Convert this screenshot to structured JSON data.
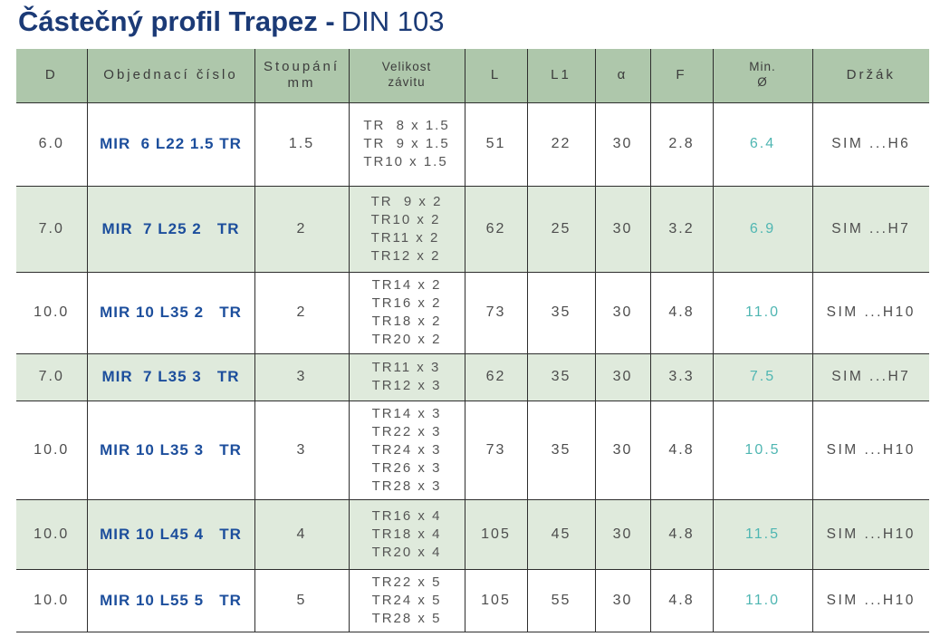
{
  "title": {
    "main": "Částečný profil Trapez -",
    "suffix": "DIN 103"
  },
  "colors": {
    "title_navy": "#1b3a76",
    "order_code_blue": "#1c4e9c",
    "header_green": "#aec7ab",
    "shaded_row_green": "#dfeadc",
    "min_diameter_teal": "#4fb6b2",
    "grid_line": "#2e2e2e"
  },
  "table": {
    "columns": [
      "D",
      "Objednací číslo",
      "Stoupání\nmm",
      "Velikost\nzávitu",
      "L",
      "L1",
      "α",
      "F",
      "Min.\nØ",
      "Držák"
    ],
    "rows": [
      {
        "d": "6.0",
        "code": "MIR  6 L22 1.5 TR",
        "pitch": "1.5",
        "threads": [
          "TR  8 x 1.5",
          "TR  9 x 1.5",
          "TR10 x 1.5"
        ],
        "l": "51",
        "l1": "22",
        "alpha": "30",
        "f": "2.8",
        "min_d": "6.4",
        "holder": "SIM ...H6"
      },
      {
        "d": "7.0",
        "code": "MIR  7 L25 2   TR",
        "pitch": "2",
        "threads": [
          "TR  9 x 2",
          "TR10 x 2",
          "TR11 x 2",
          "TR12 x 2"
        ],
        "l": "62",
        "l1": "25",
        "alpha": "30",
        "f": "3.2",
        "min_d": "6.9",
        "holder": "SIM ...H7"
      },
      {
        "d": "10.0",
        "code": "MIR 10 L35 2   TR",
        "pitch": "2",
        "threads": [
          "TR14 x 2",
          "TR16 x 2",
          "TR18 x 2",
          "TR20 x 2"
        ],
        "l": "73",
        "l1": "35",
        "alpha": "30",
        "f": "4.8",
        "min_d": "11.0",
        "holder": "SIM ...H10"
      },
      {
        "d": "7.0",
        "code": "MIR  7 L35 3   TR",
        "pitch": "3",
        "threads": [
          "TR11 x 3",
          "TR12 x 3"
        ],
        "l": "62",
        "l1": "35",
        "alpha": "30",
        "f": "3.3",
        "min_d": "7.5",
        "holder": "SIM ...H7"
      },
      {
        "d": "10.0",
        "code": "MIR 10 L35 3   TR",
        "pitch": "3",
        "threads": [
          "TR14 x 3",
          "TR22 x 3",
          "TR24 x 3",
          "TR26 x 3",
          "TR28 x 3"
        ],
        "l": "73",
        "l1": "35",
        "alpha": "30",
        "f": "4.8",
        "min_d": "10.5",
        "holder": "SIM ...H10"
      },
      {
        "d": "10.0",
        "code": "MIR 10 L45 4   TR",
        "pitch": "4",
        "threads": [
          "TR16 x 4",
          "TR18 x 4",
          "TR20 x 4"
        ],
        "l": "105",
        "l1": "45",
        "alpha": "30",
        "f": "4.8",
        "min_d": "11.5",
        "holder": "SIM ...H10"
      },
      {
        "d": "10.0",
        "code": "MIR 10 L55 5   TR",
        "pitch": "5",
        "threads": [
          "TR22 x 5",
          "TR24 x 5",
          "TR28 x 5"
        ],
        "l": "105",
        "l1": "55",
        "alpha": "30",
        "f": "4.8",
        "min_d": "11.0",
        "holder": "SIM ...H10"
      }
    ]
  }
}
